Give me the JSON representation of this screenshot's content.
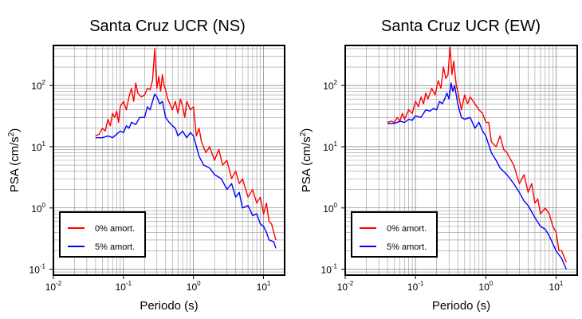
{
  "chart_data": [
    {
      "type": "line",
      "title": "Santa Cruz UCR (NS)",
      "xlabel": "Periodo (s)",
      "ylabel": "PSA (cm/s",
      "ylabel_sup": "2",
      "ylabel_close": ")",
      "xscale": "log",
      "yscale": "log",
      "xlim": [
        0.01,
        20
      ],
      "ylim": [
        0.08,
        450
      ],
      "x_tick_base": "10",
      "x_tick_exps": [
        "-2",
        "-1",
        "0",
        "1"
      ],
      "y_tick_base": "10",
      "y_tick_exps": [
        "-1",
        "0",
        "1",
        "2"
      ],
      "grid": true,
      "legend_position": "bottom-left",
      "series": [
        {
          "name": "0% amort.",
          "color": "#ff0000",
          "x": [
            0.04,
            0.045,
            0.05,
            0.055,
            0.06,
            0.065,
            0.07,
            0.075,
            0.08,
            0.085,
            0.09,
            0.1,
            0.11,
            0.12,
            0.13,
            0.14,
            0.15,
            0.16,
            0.18,
            0.2,
            0.22,
            0.24,
            0.26,
            0.28,
            0.3,
            0.32,
            0.34,
            0.36,
            0.38,
            0.4,
            0.43,
            0.46,
            0.5,
            0.55,
            0.6,
            0.65,
            0.7,
            0.75,
            0.8,
            0.9,
            1.0,
            1.1,
            1.2,
            1.3,
            1.5,
            1.7,
            2.0,
            2.3,
            2.6,
            3.0,
            3.5,
            4.0,
            4.5,
            5.0,
            6.0,
            7.0,
            8.0,
            9.0,
            10.0,
            11.0,
            12.0,
            13.0,
            14.0,
            15.0
          ],
          "y": [
            15,
            16,
            20,
            18,
            28,
            22,
            35,
            30,
            38,
            25,
            45,
            55,
            40,
            65,
            90,
            55,
            110,
            75,
            65,
            70,
            90,
            85,
            120,
            400,
            90,
            140,
            80,
            150,
            100,
            85,
            60,
            50,
            40,
            55,
            35,
            60,
            45,
            30,
            55,
            40,
            45,
            15,
            20,
            12,
            8,
            10,
            6,
            9,
            5,
            6,
            3,
            4,
            2.5,
            3,
            1.5,
            2,
            1.2,
            1.5,
            0.8,
            1.2,
            0.6,
            0.55,
            0.4,
            0.3
          ]
        },
        {
          "name": "5% amort.",
          "color": "#0000ff",
          "x": [
            0.04,
            0.05,
            0.06,
            0.07,
            0.08,
            0.09,
            0.1,
            0.11,
            0.12,
            0.13,
            0.15,
            0.17,
            0.2,
            0.22,
            0.24,
            0.26,
            0.28,
            0.3,
            0.33,
            0.36,
            0.4,
            0.45,
            0.5,
            0.55,
            0.6,
            0.7,
            0.8,
            0.9,
            1.0,
            1.2,
            1.4,
            1.7,
            2.0,
            2.5,
            3.0,
            3.5,
            4.0,
            4.5,
            5.0,
            6.0,
            7.0,
            8.0,
            9.0,
            10.0,
            11.0,
            12.0,
            14.0,
            15.0
          ],
          "y": [
            14,
            14,
            15,
            14,
            16,
            18,
            17,
            22,
            20,
            25,
            23,
            30,
            30,
            45,
            40,
            55,
            72,
            65,
            50,
            55,
            30,
            25,
            22,
            20,
            15,
            18,
            14,
            17,
            15,
            7,
            5,
            4.5,
            3.5,
            3,
            2,
            2.5,
            1.5,
            1.8,
            1.0,
            1.1,
            0.75,
            0.8,
            0.55,
            0.5,
            0.4,
            0.3,
            0.28,
            0.22
          ]
        }
      ]
    },
    {
      "type": "line",
      "title": "Santa Cruz UCR (EW)",
      "xlabel": "Periodo (s)",
      "ylabel": "PSA (cm/s",
      "ylabel_sup": "2",
      "ylabel_close": ")",
      "xscale": "log",
      "yscale": "log",
      "xlim": [
        0.01,
        20
      ],
      "ylim": [
        0.08,
        450
      ],
      "x_tick_base": "10",
      "x_tick_exps": [
        "-2",
        "-1",
        "0",
        "1"
      ],
      "y_tick_base": "10",
      "y_tick_exps": [
        "-1",
        "0",
        "1",
        "2"
      ],
      "grid": true,
      "legend_position": "bottom-left",
      "series": [
        {
          "name": "0% amort.",
          "color": "#ff0000",
          "x": [
            0.04,
            0.045,
            0.05,
            0.055,
            0.06,
            0.065,
            0.07,
            0.08,
            0.09,
            0.1,
            0.11,
            0.12,
            0.13,
            0.14,
            0.15,
            0.17,
            0.19,
            0.21,
            0.23,
            0.25,
            0.27,
            0.29,
            0.31,
            0.33,
            0.35,
            0.38,
            0.4,
            0.45,
            0.5,
            0.55,
            0.6,
            0.7,
            0.8,
            0.9,
            1.0,
            1.1,
            1.2,
            1.4,
            1.6,
            1.8,
            2.0,
            2.5,
            3.0,
            3.5,
            4.0,
            4.5,
            5.0,
            5.5,
            6.0,
            7.0,
            8.0,
            9.0,
            10.0,
            11.0,
            12.0,
            14.0
          ],
          "y": [
            25,
            26,
            25,
            30,
            26,
            35,
            28,
            40,
            35,
            55,
            45,
            65,
            50,
            75,
            60,
            90,
            70,
            120,
            90,
            200,
            130,
            150,
            420,
            150,
            250,
            100,
            80,
            40,
            70,
            50,
            65,
            50,
            40,
            35,
            25,
            25,
            12,
            10,
            15,
            9,
            8,
            5,
            2.5,
            3.5,
            1.8,
            2.5,
            1.2,
            1.4,
            0.8,
            1.0,
            0.8,
            0.5,
            0.4,
            0.2,
            0.2,
            0.13
          ]
        },
        {
          "name": "5% amort.",
          "color": "#0000ff",
          "x": [
            0.04,
            0.05,
            0.06,
            0.07,
            0.08,
            0.09,
            0.1,
            0.12,
            0.14,
            0.16,
            0.18,
            0.2,
            0.22,
            0.24,
            0.26,
            0.28,
            0.3,
            0.32,
            0.34,
            0.36,
            0.4,
            0.45,
            0.5,
            0.6,
            0.7,
            0.8,
            0.9,
            1.0,
            1.2,
            1.4,
            1.6,
            2.0,
            2.5,
            3.0,
            3.5,
            4.0,
            5.0,
            6.0,
            7.0,
            8.0,
            10.0,
            12.0,
            14.0
          ],
          "y": [
            24,
            24,
            26,
            25,
            28,
            27,
            32,
            30,
            40,
            38,
            42,
            40,
            55,
            50,
            60,
            75,
            60,
            110,
            80,
            100,
            50,
            30,
            28,
            30,
            20,
            25,
            18,
            15,
            8,
            6,
            4.5,
            3.5,
            2.5,
            1.8,
            1.3,
            1.1,
            0.7,
            0.5,
            0.45,
            0.35,
            0.2,
            0.15,
            0.1
          ]
        }
      ]
    }
  ]
}
